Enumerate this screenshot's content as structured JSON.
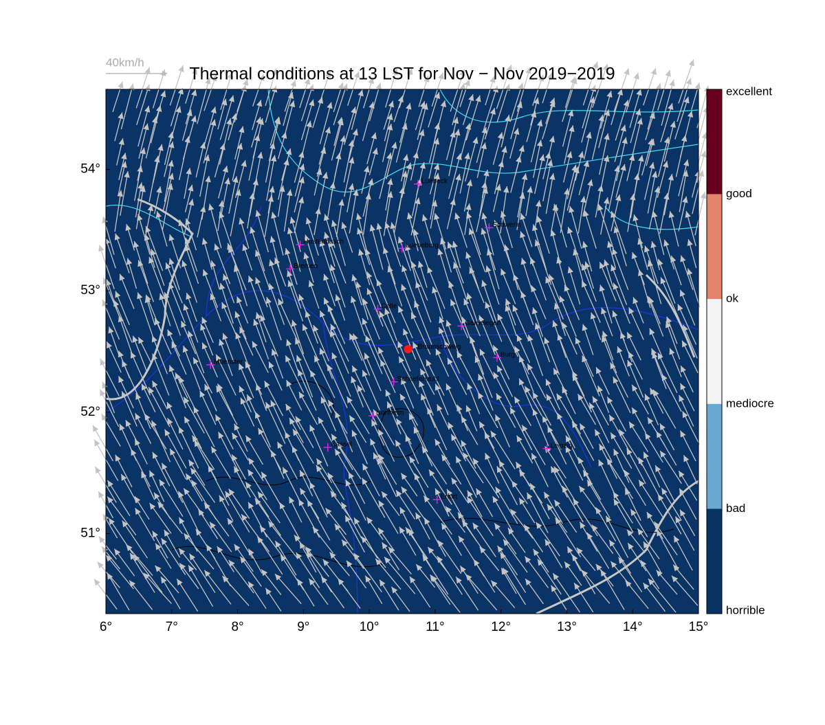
{
  "map": {
    "title": "Thermal conditions at 13 LST for Nov − Nov  2019−2019",
    "wind_scale_label": "40km/h",
    "lon_range": [
      6,
      15
    ],
    "lat_range": [
      50.34,
      54.66
    ],
    "xticks": [
      {
        "value": 6,
        "label": "6°"
      },
      {
        "value": 7,
        "label": "7°"
      },
      {
        "value": 8,
        "label": "8°"
      },
      {
        "value": 9,
        "label": "9°"
      },
      {
        "value": 10,
        "label": "10°"
      },
      {
        "value": 11,
        "label": "11°"
      },
      {
        "value": 12,
        "label": "12°"
      },
      {
        "value": 13,
        "label": "13°"
      },
      {
        "value": 14,
        "label": "14°"
      },
      {
        "value": 15,
        "label": "15°"
      }
    ],
    "yticks": [
      {
        "value": 51,
        "label": "51°"
      },
      {
        "value": 52,
        "label": "52°"
      },
      {
        "value": 53,
        "label": "53°"
      },
      {
        "value": 54,
        "label": "54°"
      }
    ],
    "cities": [
      {
        "name": "Luebeck",
        "lon": 10.74,
        "lat": 53.88
      },
      {
        "name": "Schwerin",
        "lon": 11.82,
        "lat": 53.52
      },
      {
        "name": "Hustenbusch",
        "lon": 8.95,
        "lat": 53.38
      },
      {
        "name": "Lueneburg",
        "lon": 10.5,
        "lat": 53.35
      },
      {
        "name": "Bremen",
        "lon": 8.8,
        "lat": 53.18
      },
      {
        "name": "Celle",
        "lon": 10.13,
        "lat": 52.85
      },
      {
        "name": "Gardelegen",
        "lon": 11.4,
        "lat": 52.71
      },
      {
        "name": "Burg",
        "lon": 11.94,
        "lat": 52.45
      },
      {
        "name": "Muenster",
        "lon": 7.59,
        "lat": 52.39
      },
      {
        "name": "Schaeferstuhl",
        "lon": 10.37,
        "lat": 52.25
      },
      {
        "name": "Northeim",
        "lon": 10.05,
        "lat": 51.97
      },
      {
        "name": "Kassel",
        "lon": 9.37,
        "lat": 51.71
      },
      {
        "name": "Leipzig",
        "lon": 12.7,
        "lat": 51.7
      },
      {
        "name": "Erfurt",
        "lon": 11.03,
        "lat": 51.28
      }
    ],
    "site": {
      "name": "Braunschweig",
      "lon": 10.59,
      "lat": 52.52
    },
    "colorbar": {
      "labels": [
        "excellent",
        "good",
        "ok",
        "mediocre",
        "bad",
        "horrible"
      ],
      "colors": [
        "#67001f",
        "#e3856a",
        "#f4f4f4",
        "#6aa8d0",
        "#073362"
      ]
    }
  }
}
